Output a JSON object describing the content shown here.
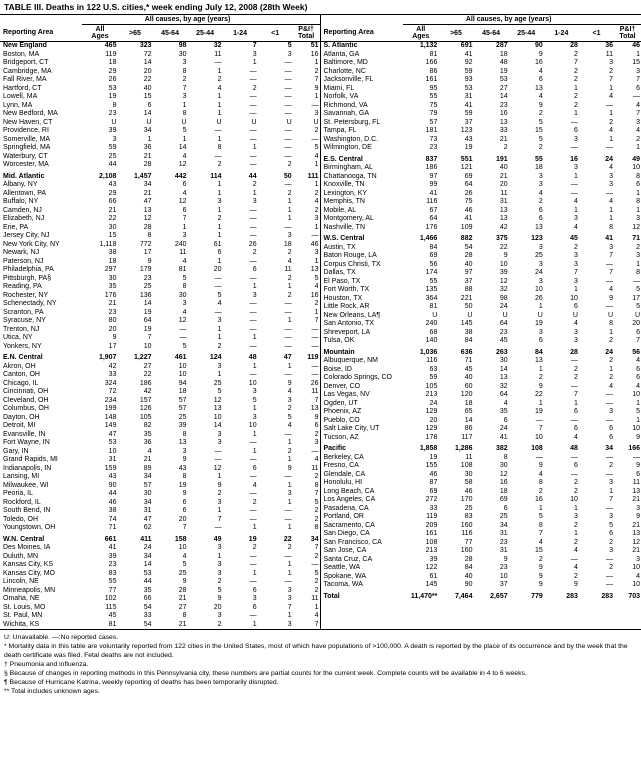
{
  "title": "TABLE III. Deaths in 122 U.S. cities,* week ending July 12, 2008 (28th Week)",
  "headers": {
    "span": "All causes, by age (years)",
    "reporting_area": "Reporting Area",
    "all_ages": "All\nAges",
    "c65": ">65",
    "c4564": "45-64",
    "c2544": "25-44",
    "c124": "1-24",
    "clt1": "<1",
    "pi": "P&I†\nTotal"
  },
  "left": [
    [
      "New England",
      "465",
      "323",
      "98",
      "32",
      "7",
      "5",
      "51",
      true
    ],
    [
      "Boston, MA",
      "119",
      "72",
      "30",
      "11",
      "3",
      "3",
      "16"
    ],
    [
      "Bridgeport, CT",
      "18",
      "14",
      "3",
      "—",
      "1",
      "—",
      "1"
    ],
    [
      "Cambridge, MA",
      "29",
      "20",
      "8",
      "1",
      "—",
      "—",
      "2"
    ],
    [
      "Fall River, MA",
      "26",
      "22",
      "2",
      "2",
      "—",
      "—",
      "7"
    ],
    [
      "Hartford, CT",
      "53",
      "40",
      "7",
      "4",
      "2",
      "—",
      "9"
    ],
    [
      "Lowell, MA",
      "19",
      "15",
      "3",
      "1",
      "—",
      "—",
      "1"
    ],
    [
      "Lynn, MA",
      "8",
      "6",
      "1",
      "1",
      "—",
      "—",
      "—"
    ],
    [
      "New Bedford, MA",
      "23",
      "14",
      "8",
      "1",
      "—",
      "—",
      "3"
    ],
    [
      "New Haven, CT",
      "U",
      "U",
      "U",
      "U",
      "U",
      "U",
      "U"
    ],
    [
      "Providence, RI",
      "39",
      "34",
      "5",
      "—",
      "—",
      "—",
      "2"
    ],
    [
      "Somerville, MA",
      "3",
      "1",
      "1",
      "1",
      "—",
      "—",
      "—"
    ],
    [
      "Springfield, MA",
      "59",
      "36",
      "14",
      "8",
      "1",
      "—",
      "5"
    ],
    [
      "Waterbury, CT",
      "25",
      "21",
      "4",
      "—",
      "—",
      "—",
      "4"
    ],
    [
      "Worcester, MA",
      "44",
      "28",
      "12",
      "2",
      "—",
      "2",
      "1"
    ],
    [
      "Mid. Atlantic",
      "2,108",
      "1,457",
      "442",
      "114",
      "44",
      "50",
      "111",
      true
    ],
    [
      "Albany, NY",
      "43",
      "34",
      "6",
      "1",
      "2",
      "—",
      "1"
    ],
    [
      "Allentown, PA",
      "29",
      "21",
      "4",
      "1",
      "1",
      "2",
      "2"
    ],
    [
      "Buffalo, NY",
      "66",
      "47",
      "12",
      "3",
      "3",
      "1",
      "4"
    ],
    [
      "Camden, NJ",
      "21",
      "13",
      "6",
      "1",
      "—",
      "1",
      "2"
    ],
    [
      "Elizabeth, NJ",
      "22",
      "12",
      "7",
      "2",
      "—",
      "1",
      "3"
    ],
    [
      "Erie, PA",
      "30",
      "28",
      "1",
      "1",
      "—",
      "—",
      "1"
    ],
    [
      "Jersey City, NJ",
      "15",
      "8",
      "3",
      "1",
      "—",
      "3",
      "—"
    ],
    [
      "New York City, NY",
      "1,118",
      "772",
      "240",
      "61",
      "26",
      "18",
      "46"
    ],
    [
      "Newark, NJ",
      "38",
      "17",
      "11",
      "6",
      "2",
      "2",
      "3"
    ],
    [
      "Paterson, NJ",
      "18",
      "9",
      "4",
      "1",
      "—",
      "4",
      "1"
    ],
    [
      "Philadelphia, PA",
      "297",
      "179",
      "81",
      "20",
      "6",
      "11",
      "13"
    ],
    [
      "Pittsburgh, PA§",
      "30",
      "23",
      "5",
      "—",
      "—",
      "2",
      "5"
    ],
    [
      "Reading, PA",
      "35",
      "25",
      "8",
      "—",
      "1",
      "1",
      "4"
    ],
    [
      "Rochester, NY",
      "176",
      "136",
      "30",
      "5",
      "3",
      "2",
      "16"
    ],
    [
      "Schenectady, NY",
      "21",
      "14",
      "3",
      "4",
      "—",
      "—",
      "2"
    ],
    [
      "Scranton, PA",
      "23",
      "19",
      "4",
      "—",
      "—",
      "—",
      "1"
    ],
    [
      "Syracuse, NY",
      "80",
      "64",
      "12",
      "3",
      "—",
      "1",
      "7"
    ],
    [
      "Trenton, NJ",
      "20",
      "19",
      "—",
      "1",
      "—",
      "—",
      "—"
    ],
    [
      "Utica, NY",
      "9",
      "7",
      "—",
      "1",
      "1",
      "—",
      "—"
    ],
    [
      "Yonkers, NY",
      "17",
      "10",
      "5",
      "2",
      "—",
      "—",
      "—"
    ],
    [
      "E.N. Central",
      "1,907",
      "1,227",
      "461",
      "124",
      "48",
      "47",
      "119",
      true
    ],
    [
      "Akron, OH",
      "42",
      "27",
      "10",
      "3",
      "1",
      "1",
      "—"
    ],
    [
      "Canton, OH",
      "33",
      "22",
      "10",
      "1",
      "—",
      "—",
      "—"
    ],
    [
      "Chicago, IL",
      "324",
      "186",
      "94",
      "25",
      "10",
      "9",
      "26"
    ],
    [
      "Cincinnati, OH",
      "72",
      "42",
      "18",
      "5",
      "3",
      "4",
      "11"
    ],
    [
      "Cleveland, OH",
      "234",
      "157",
      "57",
      "12",
      "5",
      "3",
      "7"
    ],
    [
      "Columbus, OH",
      "199",
      "126",
      "57",
      "13",
      "1",
      "2",
      "13"
    ],
    [
      "Dayton, OH",
      "148",
      "105",
      "25",
      "10",
      "3",
      "5",
      "9"
    ],
    [
      "Detroit, MI",
      "149",
      "82",
      "39",
      "14",
      "10",
      "4",
      "6"
    ],
    [
      "Evansville, IN",
      "47",
      "35",
      "8",
      "3",
      "1",
      "—",
      "2"
    ],
    [
      "Fort Wayne, IN",
      "53",
      "36",
      "13",
      "3",
      "—",
      "1",
      "3"
    ],
    [
      "Gary, IN",
      "10",
      "4",
      "3",
      "—",
      "1",
      "2",
      "—"
    ],
    [
      "Grand Rapids, MI",
      "31",
      "21",
      "9",
      "—",
      "—",
      "1",
      "4"
    ],
    [
      "Indianapolis, IN",
      "159",
      "89",
      "43",
      "12",
      "6",
      "9",
      "11"
    ],
    [
      "Lansing, MI",
      "43",
      "34",
      "8",
      "1",
      "—",
      "—",
      "2"
    ],
    [
      "Milwaukee, WI",
      "90",
      "57",
      "19",
      "9",
      "4",
      "1",
      "8"
    ],
    [
      "Peoria, IL",
      "44",
      "30",
      "9",
      "2",
      "—",
      "3",
      "7"
    ],
    [
      "Rockford, IL",
      "46",
      "34",
      "6",
      "3",
      "2",
      "1",
      "5"
    ],
    [
      "South Bend, IN",
      "38",
      "31",
      "6",
      "1",
      "—",
      "—",
      "2"
    ],
    [
      "Toledo, OH",
      "74",
      "47",
      "20",
      "7",
      "—",
      "—",
      "2"
    ],
    [
      "Youngstown, OH",
      "71",
      "62",
      "7",
      "—",
      "1",
      "1",
      "8"
    ],
    [
      "W.N. Central",
      "661",
      "411",
      "158",
      "49",
      "19",
      "22",
      "34",
      true
    ],
    [
      "Des Moines, IA",
      "41",
      "24",
      "10",
      "3",
      "2",
      "2",
      "7"
    ],
    [
      "Duluth, MN",
      "39",
      "34",
      "4",
      "1",
      "—",
      "—",
      "2"
    ],
    [
      "Kansas City, KS",
      "23",
      "14",
      "5",
      "3",
      "—",
      "1",
      "—"
    ],
    [
      "Kansas City, MO",
      "83",
      "53",
      "25",
      "3",
      "1",
      "1",
      "5"
    ],
    [
      "Lincoln, NE",
      "55",
      "44",
      "9",
      "2",
      "—",
      "—",
      "2"
    ],
    [
      "Minneapolis, MN",
      "77",
      "35",
      "28",
      "5",
      "6",
      "3",
      "2"
    ],
    [
      "Omaha, NE",
      "102",
      "66",
      "21",
      "9",
      "3",
      "3",
      "11"
    ],
    [
      "St. Louis, MO",
      "115",
      "54",
      "27",
      "20",
      "6",
      "7",
      "1"
    ],
    [
      "St. Paul, MN",
      "45",
      "33",
      "8",
      "3",
      "—",
      "1",
      "4"
    ],
    [
      "Wichita, KS",
      "81",
      "54",
      "21",
      "2",
      "1",
      "3",
      "7"
    ]
  ],
  "right": [
    [
      "S. Atlantic",
      "1,132",
      "691",
      "287",
      "90",
      "28",
      "36",
      "46",
      true
    ],
    [
      "Atlanta, GA",
      "81",
      "41",
      "18",
      "9",
      "2",
      "11",
      "1"
    ],
    [
      "Baltimore, MD",
      "166",
      "92",
      "48",
      "16",
      "7",
      "3",
      "15"
    ],
    [
      "Charlotte, NC",
      "86",
      "59",
      "19",
      "4",
      "2",
      "2",
      "3"
    ],
    [
      "Jacksonville, FL",
      "161",
      "93",
      "53",
      "6",
      "2",
      "7",
      "7"
    ],
    [
      "Miami, FL",
      "95",
      "53",
      "27",
      "13",
      "1",
      "1",
      "6"
    ],
    [
      "Norfolk, VA",
      "55",
      "31",
      "14",
      "4",
      "2",
      "4",
      "—"
    ],
    [
      "Richmond, VA",
      "75",
      "41",
      "23",
      "9",
      "2",
      "—",
      "4"
    ],
    [
      "Savannah, GA",
      "79",
      "59",
      "16",
      "2",
      "1",
      "1",
      "7"
    ],
    [
      "St. Petersburg, FL",
      "57",
      "37",
      "13",
      "5",
      "—",
      "2",
      "3"
    ],
    [
      "Tampa, FL",
      "181",
      "123",
      "33",
      "15",
      "6",
      "4",
      "4"
    ],
    [
      "Washington, D.C.",
      "73",
      "43",
      "21",
      "5",
      "3",
      "1",
      "2"
    ],
    [
      "Wilmington, DE",
      "23",
      "19",
      "2",
      "2",
      "—",
      "—",
      "1"
    ],
    [
      "E.S. Central",
      "837",
      "551",
      "191",
      "55",
      "16",
      "24",
      "49",
      true
    ],
    [
      "Birmingham, AL",
      "186",
      "121",
      "40",
      "18",
      "3",
      "4",
      "10"
    ],
    [
      "Chattanooga, TN",
      "97",
      "69",
      "21",
      "3",
      "1",
      "3",
      "8"
    ],
    [
      "Knoxville, TN",
      "99",
      "64",
      "20",
      "3",
      "—",
      "3",
      "6"
    ],
    [
      "Lexington, KY",
      "41",
      "26",
      "11",
      "4",
      "—",
      "—",
      "1"
    ],
    [
      "Memphis, TN",
      "116",
      "75",
      "31",
      "2",
      "4",
      "4",
      "8"
    ],
    [
      "Mobile, AL",
      "67",
      "46",
      "13",
      "6",
      "1",
      "1",
      "1"
    ],
    [
      "Montgomery, AL",
      "64",
      "41",
      "13",
      "6",
      "3",
      "1",
      "3"
    ],
    [
      "Nashville, TN",
      "176",
      "109",
      "42",
      "13",
      "4",
      "8",
      "12"
    ],
    [
      "W.S. Central",
      "1,466",
      "882",
      "375",
      "123",
      "45",
      "41",
      "71",
      true
    ],
    [
      "Austin, TX",
      "84",
      "54",
      "22",
      "3",
      "2",
      "3",
      "2"
    ],
    [
      "Baton Rouge, LA",
      "69",
      "28",
      "9",
      "25",
      "3",
      "7",
      "3"
    ],
    [
      "Corpus Christi, TX",
      "56",
      "40",
      "10",
      "3",
      "3",
      "—",
      "1"
    ],
    [
      "Dallas, TX",
      "174",
      "97",
      "39",
      "24",
      "7",
      "7",
      "8"
    ],
    [
      "El Paso, TX",
      "55",
      "37",
      "12",
      "3",
      "3",
      "—",
      "—"
    ],
    [
      "Fort Worth, TX",
      "135",
      "88",
      "32",
      "10",
      "1",
      "4",
      "5"
    ],
    [
      "Houston, TX",
      "364",
      "221",
      "98",
      "26",
      "10",
      "9",
      "17"
    ],
    [
      "Little Rock, AR",
      "81",
      "50",
      "24",
      "1",
      "6",
      "—",
      "5"
    ],
    [
      "New Orleans, LA¶",
      "U",
      "U",
      "U",
      "U",
      "U",
      "U",
      "U"
    ],
    [
      "San Antonio, TX",
      "240",
      "145",
      "64",
      "19",
      "4",
      "8",
      "20"
    ],
    [
      "Shreveport, LA",
      "68",
      "38",
      "23",
      "3",
      "3",
      "1",
      "6"
    ],
    [
      "Tulsa, OK",
      "140",
      "84",
      "45",
      "6",
      "3",
      "2",
      "7"
    ],
    [
      "Mountain",
      "1,036",
      "636",
      "263",
      "84",
      "28",
      "24",
      "56",
      true
    ],
    [
      "Albuquerque, NM",
      "116",
      "71",
      "30",
      "13",
      "—",
      "2",
      "4"
    ],
    [
      "Boise, ID",
      "63",
      "45",
      "14",
      "1",
      "2",
      "1",
      "6"
    ],
    [
      "Colorado Springs, CO",
      "59",
      "40",
      "13",
      "2",
      "2",
      "2",
      "6"
    ],
    [
      "Denver, CO",
      "105",
      "60",
      "32",
      "9",
      "—",
      "4",
      "4"
    ],
    [
      "Las Vegas, NV",
      "213",
      "120",
      "64",
      "22",
      "7",
      "—",
      "10"
    ],
    [
      "Ogden, UT",
      "24",
      "18",
      "4",
      "1",
      "1",
      "—",
      "1"
    ],
    [
      "Phoenix, AZ",
      "129",
      "65",
      "35",
      "19",
      "6",
      "3",
      "5"
    ],
    [
      "Pueblo, CO",
      "20",
      "14",
      "6",
      "—",
      "—",
      "—",
      "1"
    ],
    [
      "Salt Lake City, UT",
      "129",
      "86",
      "24",
      "7",
      "6",
      "6",
      "10"
    ],
    [
      "Tucson, AZ",
      "178",
      "117",
      "41",
      "10",
      "4",
      "6",
      "9"
    ],
    [
      "Pacific",
      "1,858",
      "1,286",
      "382",
      "108",
      "48",
      "34",
      "166",
      true
    ],
    [
      "Berkeley, CA",
      "19",
      "11",
      "8",
      "—",
      "—",
      "—",
      "—"
    ],
    [
      "Fresno, CA",
      "155",
      "108",
      "30",
      "9",
      "6",
      "2",
      "9"
    ],
    [
      "Glendale, CA",
      "46",
      "30",
      "12",
      "4",
      "—",
      "—",
      "6"
    ],
    [
      "Honolulu, HI",
      "87",
      "58",
      "16",
      "8",
      "2",
      "3",
      "11"
    ],
    [
      "Long Beach, CA",
      "69",
      "46",
      "18",
      "2",
      "2",
      "1",
      "13"
    ],
    [
      "Los Angeles, CA",
      "272",
      "170",
      "69",
      "16",
      "10",
      "7",
      "21"
    ],
    [
      "Pasadena, CA",
      "33",
      "25",
      "6",
      "1",
      "1",
      "—",
      "3"
    ],
    [
      "Portland, OR",
      "119",
      "83",
      "25",
      "5",
      "3",
      "3",
      "9"
    ],
    [
      "Sacramento, CA",
      "209",
      "160",
      "34",
      "8",
      "2",
      "5",
      "21"
    ],
    [
      "San Diego, CA",
      "161",
      "116",
      "31",
      "7",
      "1",
      "6",
      "13"
    ],
    [
      "San Francisco, CA",
      "108",
      "77",
      "23",
      "4",
      "2",
      "2",
      "12"
    ],
    [
      "San Jose, CA",
      "213",
      "160",
      "31",
      "15",
      "4",
      "3",
      "21"
    ],
    [
      "Santa Cruz, CA",
      "39",
      "28",
      "9",
      "2",
      "—",
      "—",
      "3"
    ],
    [
      "Seattle, WA",
      "122",
      "84",
      "23",
      "9",
      "4",
      "2",
      "10"
    ],
    [
      "Spokane, WA",
      "61",
      "40",
      "10",
      "9",
      "2",
      "—",
      "4"
    ],
    [
      "Tacoma, WA",
      "145",
      "90",
      "37",
      "9",
      "9",
      "—",
      "10"
    ],
    [
      "Total",
      "11,470**",
      "7,464",
      "2,657",
      "779",
      "283",
      "283",
      "703",
      true
    ]
  ],
  "notes": [
    "U: Unavailable.      —:No reported cases.",
    "* Mortality data in this table are voluntarily reported from 122 cities in the United States, most of which have populations of >100,000. A death is reported by the place of its occurrence and by the week that the death certificate was filed. Fetal deaths are not included.",
    "† Pneumonia and influenza.",
    "§ Because of changes in reporting methods in this Pennsylvania city, these numbers are partial counts for the current week. Complete counts will be available in 4 to 6 weeks.",
    "¶ Because of Hurricane Katrina, weekly reporting of deaths has been temporarily disrupted.",
    "** Total includes unknown ages."
  ]
}
